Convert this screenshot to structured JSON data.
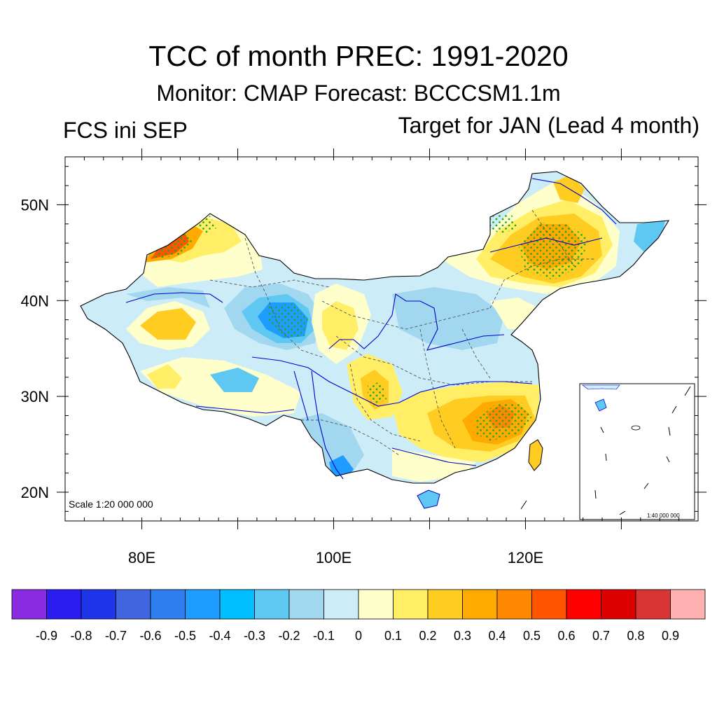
{
  "title": "TCC of month PREC: 1991-2020",
  "subtitle": "Monitor: CMAP   Forecast: BCCCSM1.1m",
  "left_label": "FCS ini SEP",
  "right_label": "Target for JAN (Lead 4 month)",
  "scale_text": "Scale 1:20 000 000",
  "inset_scale_text": "1:40 000 000",
  "axes": {
    "lat_labels": [
      "50N",
      "40N",
      "30N",
      "20N"
    ],
    "lon_labels": [
      "80E",
      "100E",
      "120E"
    ],
    "lon_range": [
      72,
      138
    ],
    "lat_range": [
      17,
      55
    ]
  },
  "colorbar": {
    "colors": [
      "#8a2be2",
      "#2b1cf0",
      "#1e36ea",
      "#4065de",
      "#2f7ef0",
      "#1f9cff",
      "#00bfff",
      "#5ec8f2",
      "#a2d7f0",
      "#ccecf8",
      "#ffffcc",
      "#ffee66",
      "#ffcc22",
      "#ffaa00",
      "#ff8800",
      "#ff5500",
      "#ff0000",
      "#dd0000",
      "#d93535",
      "#ffb0b0"
    ],
    "labels": [
      "-0.9",
      "-0.8",
      "-0.7",
      "-0.6",
      "-0.5",
      "-0.4",
      "-0.3",
      "-0.2",
      "-0.1",
      "0",
      "0.1",
      "0.2",
      "0.3",
      "0.4",
      "0.5",
      "0.6",
      "0.7",
      "0.8",
      "0.9"
    ]
  },
  "colors": {
    "coastline": "#000000",
    "rivers": "#0000cc",
    "provinces": "#555555",
    "stipple": "#22aa22"
  }
}
